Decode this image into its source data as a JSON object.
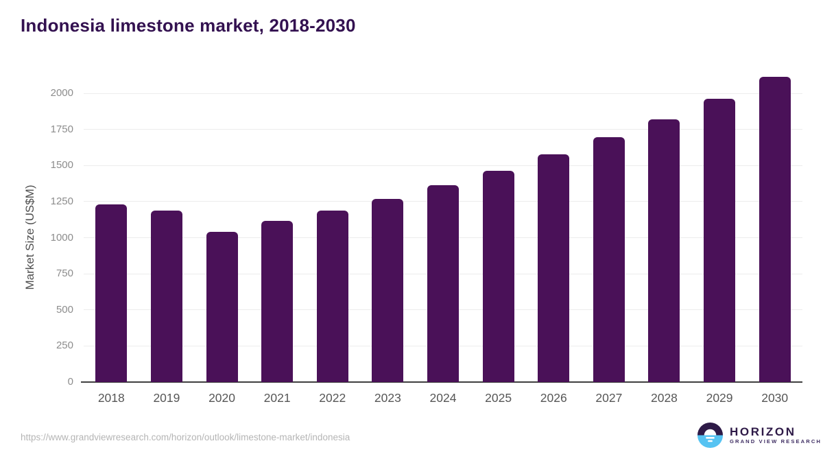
{
  "title": "Indonesia limestone market, 2018-2030",
  "chart_data": {
    "type": "bar",
    "title": "Indonesia limestone market, 2018-2030",
    "categories": [
      "2018",
      "2019",
      "2020",
      "2021",
      "2022",
      "2023",
      "2024",
      "2025",
      "2026",
      "2027",
      "2028",
      "2029",
      "2030"
    ],
    "values": [
      1230,
      1190,
      1040,
      1115,
      1190,
      1270,
      1365,
      1465,
      1575,
      1695,
      1820,
      1960,
      2115
    ],
    "xlabel": "",
    "ylabel": "Market Size (US$M)",
    "ylim": [
      0,
      2000
    ],
    "yticks": [
      0,
      250,
      500,
      750,
      1000,
      1250,
      1500,
      1750,
      2000
    ],
    "grid": "horizontal",
    "legend": "none",
    "bar_color": "#4a1158"
  },
  "footer": {
    "source_url": "https://www.grandviewresearch.com/horizon/outlook/limestone-market/indonesia",
    "logo": {
      "name": "HORIZON",
      "subtitle": "GRAND VIEW RESEARCH",
      "icon": "horizon-sunrise-icon",
      "dark_color": "#2e1a47",
      "blue_color": "#56c3f2"
    }
  },
  "colors": {
    "title_text": "#331150",
    "bar": "#4a1158",
    "gridline": "#ececec",
    "axis_line": "#3f3f3f",
    "y_tick_text": "#8c8c8c",
    "x_tick_text": "#565656",
    "y_axis_title_text": "#4f4f4f",
    "source_url_text": "#b5b5b5",
    "background": "#ffffff"
  }
}
